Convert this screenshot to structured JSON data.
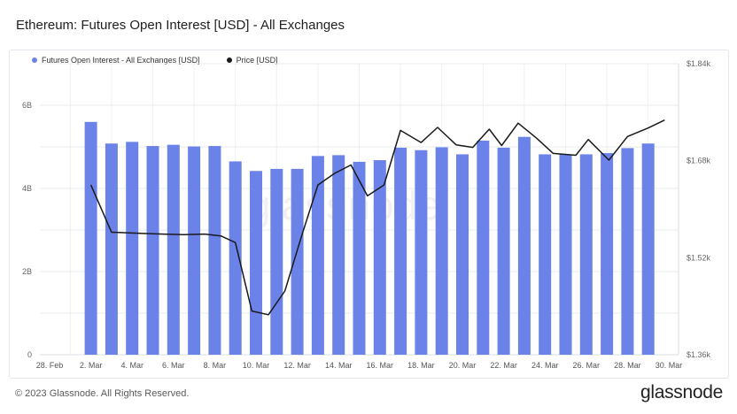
{
  "title": "Ethereum: Futures Open Interest [USD] - All Exchanges",
  "footer": "© 2023 Glassnode. All Rights Reserved.",
  "brand": "glassnode",
  "watermark": "glassnode",
  "legend": [
    {
      "label": "Futures Open Interest - All Exchanges [USD]",
      "color": "#6b82e8"
    },
    {
      "label": "Price [USD]",
      "color": "#1a1a1a"
    }
  ],
  "chart_data": {
    "type": "bar",
    "x_ticks": [
      "28. Feb",
      "2. Mar",
      "4. Mar",
      "6. Mar",
      "8. Mar",
      "10. Mar",
      "12. Mar",
      "14. Mar",
      "16. Mar",
      "18. Mar",
      "20. Mar",
      "22. Mar",
      "24. Mar",
      "26. Mar",
      "28. Mar",
      "30. Mar"
    ],
    "y_left_ticks": [
      "0",
      "2B",
      "4B",
      "6B"
    ],
    "y_right_ticks": [
      "$1.36k",
      "$1.52k",
      "$1.68k",
      "$1.84k"
    ],
    "ylim_left": [
      0,
      7.0
    ],
    "ylim_right": [
      1360,
      1840
    ],
    "grid": true,
    "legend_position": "top-left",
    "categories": [
      "2 Mar",
      "3 Mar",
      "4 Mar",
      "5 Mar",
      "6 Mar",
      "7 Mar",
      "8 Mar",
      "9 Mar",
      "10 Mar",
      "11 Mar",
      "12 Mar",
      "13 Mar",
      "14 Mar",
      "15 Mar",
      "16 Mar",
      "17 Mar",
      "18 Mar",
      "19 Mar",
      "20 Mar",
      "21 Mar",
      "22 Mar",
      "23 Mar",
      "24 Mar",
      "25 Mar",
      "26 Mar",
      "27 Mar",
      "28 Mar",
      "29 Mar"
    ],
    "series": [
      {
        "name": "Futures Open Interest - All Exchanges [USD]",
        "kind": "bar",
        "axis": "left",
        "color": "#6b82e8",
        "values": [
          5.6,
          5.08,
          5.12,
          5.02,
          5.05,
          5.01,
          5.02,
          4.65,
          4.42,
          4.47,
          4.47,
          4.78,
          4.8,
          4.64,
          4.68,
          4.98,
          4.92,
          4.99,
          4.82,
          5.15,
          4.98,
          5.24,
          4.82,
          4.82,
          4.82,
          4.85,
          4.97,
          5.08
        ]
      },
      {
        "name": "Price [USD]",
        "kind": "line",
        "axis": "right",
        "color": "#1a1a1a",
        "x_values": [
          2.0,
          3.0,
          4.5,
          5.5,
          6.5,
          7.5,
          8.3,
          9.0,
          9.8,
          10.6,
          11.4,
          12.2,
          13.0,
          13.8,
          14.6,
          15.4,
          16.2,
          17.0,
          18.0,
          18.8,
          19.7,
          20.5,
          21.3,
          21.9,
          22.7,
          23.6,
          24.4,
          25.5,
          26.1,
          27.1,
          28.0,
          29.0,
          29.8
        ],
        "values": [
          1640,
          1562,
          1560,
          1559,
          1558,
          1559,
          1556,
          1545,
          1432,
          1426,
          1465,
          1555,
          1640,
          1659,
          1673,
          1622,
          1640,
          1730,
          1710,
          1735,
          1706,
          1702,
          1732,
          1705,
          1742,
          1717,
          1692,
          1689,
          1715,
          1681,
          1720,
          1734,
          1747
        ]
      }
    ]
  }
}
